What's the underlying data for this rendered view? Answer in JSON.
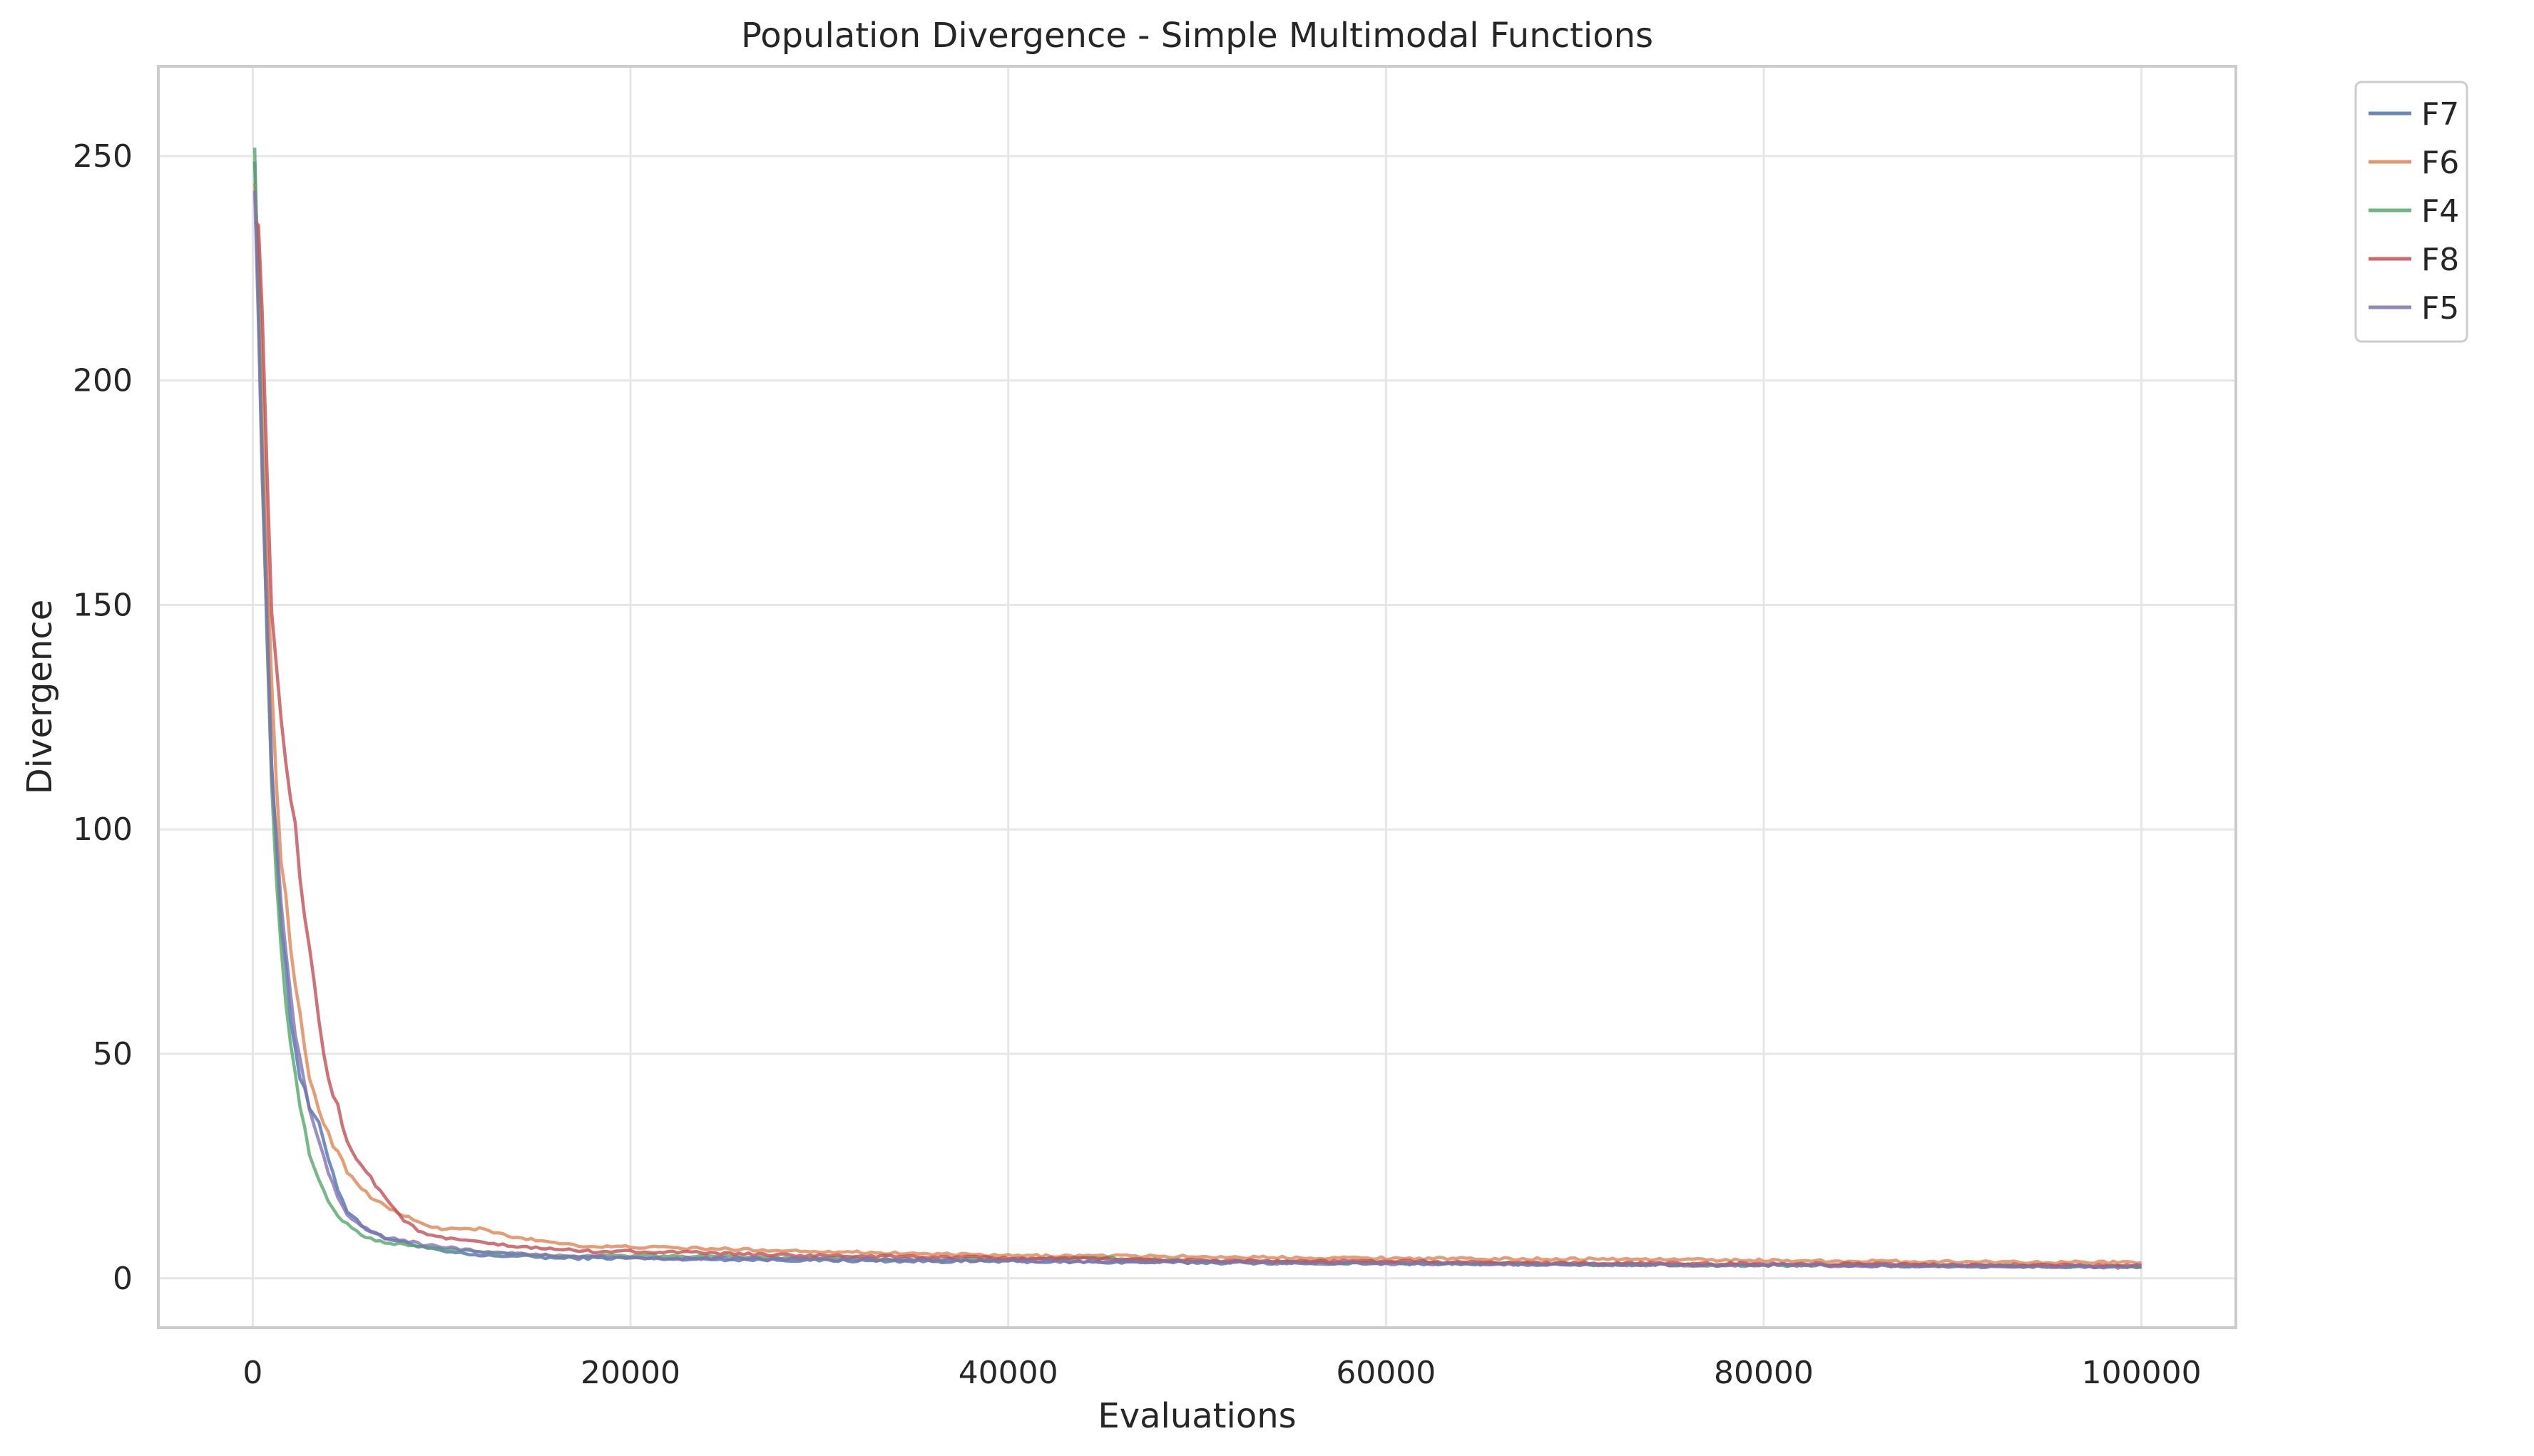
{
  "chart_data": {
    "type": "line",
    "title": "Population Divergence - Simple Multimodal Functions",
    "xlabel": "Evaluations",
    "ylabel": "Divergence",
    "xlim": [
      -5000,
      105000
    ],
    "ylim": [
      -11,
      270
    ],
    "xticks": [
      0,
      20000,
      40000,
      60000,
      80000,
      100000
    ],
    "xtick_labels": [
      "0",
      "20000",
      "40000",
      "60000",
      "80000",
      "100000"
    ],
    "yticks": [
      0,
      50,
      100,
      150,
      200,
      250
    ],
    "ytick_labels": [
      "0",
      "50",
      "100",
      "150",
      "200",
      "250"
    ],
    "grid": true,
    "legend_position": "outside-top-right",
    "series": [
      {
        "name": "F7",
        "color": "#4c72b0",
        "x": [
          100,
          500,
          1000,
          1500,
          2000,
          2500,
          3000,
          3500,
          4000,
          4500,
          5000,
          6000,
          7000,
          8000,
          9000,
          10000,
          12000,
          14000,
          16000,
          18000,
          20000,
          25000,
          30000,
          35000,
          40000,
          45000,
          50000,
          55000,
          60000,
          65000,
          70000,
          75000,
          80000,
          85000,
          90000,
          95000,
          100000
        ],
        "y": [
          255,
          185,
          115,
          80,
          58,
          45,
          38,
          34,
          27,
          20,
          15,
          11,
          9,
          8,
          7,
          6,
          5,
          5,
          4.5,
          4.5,
          4.5,
          4.2,
          4.0,
          3.8,
          3.8,
          3.6,
          3.5,
          3.4,
          3.3,
          3.2,
          3.1,
          3.0,
          2.9,
          2.8,
          2.7,
          2.6,
          2.5
        ]
      },
      {
        "name": "F6",
        "color": "#dd8452",
        "x": [
          100,
          500,
          1000,
          1500,
          2000,
          2500,
          3000,
          3500,
          4000,
          4500,
          5000,
          6000,
          7000,
          8000,
          9000,
          10000,
          12000,
          14000,
          16000,
          18000,
          20000,
          25000,
          30000,
          35000,
          40000,
          45000,
          50000,
          55000,
          60000,
          65000,
          70000,
          75000,
          80000,
          85000,
          90000,
          95000,
          100000
        ],
        "y": [
          250,
          200,
          130,
          95,
          72,
          58,
          45,
          38,
          32,
          28,
          24,
          19,
          16,
          14,
          12,
          11,
          11,
          9,
          8,
          7,
          7,
          6.5,
          6,
          5.5,
          5,
          5,
          4.8,
          4.6,
          4.5,
          4.3,
          4.3,
          4.2,
          4.0,
          3.8,
          3.7,
          3.6,
          3.5
        ]
      },
      {
        "name": "F4",
        "color": "#55a868",
        "x": [
          100,
          500,
          1000,
          1500,
          2000,
          2500,
          3000,
          3500,
          4000,
          4500,
          5000,
          6000,
          7000,
          8000,
          9000,
          10000,
          12000,
          14000,
          16000,
          18000,
          20000,
          25000,
          30000,
          35000,
          40000,
          45000,
          50000,
          55000,
          60000,
          65000,
          70000,
          75000,
          80000,
          85000,
          90000,
          95000,
          100000
        ],
        "y": [
          258,
          180,
          110,
          72,
          52,
          38,
          28,
          22,
          17,
          14,
          12,
          9,
          8,
          7.5,
          7,
          6.5,
          6,
          5.5,
          5,
          5,
          5,
          4.8,
          4.5,
          4.2,
          4.2,
          4.5,
          3.8,
          3.6,
          3.4,
          3.2,
          3.1,
          3.0,
          2.9,
          2.9,
          2.8,
          2.7,
          2.6
        ]
      },
      {
        "name": "F8",
        "color": "#c44e52",
        "x": [
          100,
          500,
          1000,
          1500,
          2000,
          2500,
          3000,
          3500,
          4000,
          4500,
          5000,
          6000,
          7000,
          8000,
          9000,
          10000,
          12000,
          14000,
          16000,
          18000,
          20000,
          25000,
          30000,
          35000,
          40000,
          45000,
          50000,
          55000,
          60000,
          65000,
          70000,
          75000,
          80000,
          85000,
          90000,
          95000,
          100000
        ],
        "y": [
          241,
          220,
          145,
          122,
          108,
          90,
          72,
          57,
          45,
          38,
          30,
          24,
          18,
          13,
          10,
          9,
          8,
          7,
          6.5,
          6,
          6,
          5.5,
          5,
          4.8,
          4.5,
          4.3,
          4.0,
          3.8,
          3.8,
          3.5,
          3.4,
          3.3,
          3.2,
          3.1,
          3.0,
          2.9,
          2.8
        ]
      },
      {
        "name": "F5",
        "color": "#8172b3",
        "x": [
          100,
          500,
          1000,
          1500,
          2000,
          2500,
          3000,
          3500,
          4000,
          4500,
          5000,
          6000,
          7000,
          8000,
          9000,
          10000,
          12000,
          14000,
          16000,
          18000,
          20000,
          25000,
          30000,
          35000,
          40000,
          45000,
          50000,
          55000,
          60000,
          65000,
          70000,
          75000,
          80000,
          85000,
          90000,
          95000,
          100000
        ],
        "y": [
          248,
          180,
          112,
          82,
          62,
          48,
          37,
          30,
          24,
          18,
          14,
          11,
          9,
          8.5,
          7.5,
          7,
          6,
          5.5,
          5,
          4.8,
          4.6,
          4.4,
          4.2,
          4.0,
          3.9,
          3.7,
          3.6,
          3.4,
          3.3,
          3.2,
          3.1,
          3.0,
          2.9,
          2.8,
          2.7,
          2.6,
          2.5
        ]
      }
    ]
  }
}
